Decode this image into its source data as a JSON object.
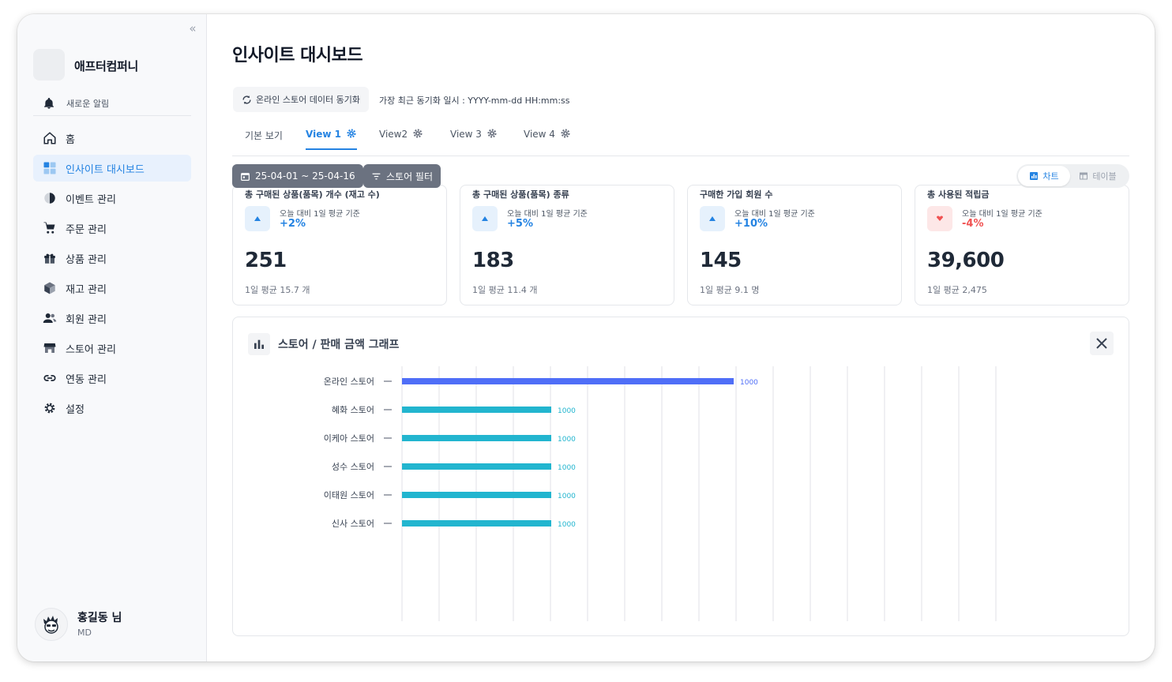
{
  "sidebar": {
    "brand_name": "애프터컴퍼니",
    "notification_label": "새로운 알림",
    "items": [
      {
        "label": "홈",
        "icon": "home-icon"
      },
      {
        "label": "인사이트 대시보드",
        "icon": "dashboard-icon",
        "active": true
      },
      {
        "label": "이벤트 관리",
        "icon": "pie-icon"
      },
      {
        "label": "주문 관리",
        "icon": "cart-icon"
      },
      {
        "label": "상품 관리",
        "icon": "gift-icon"
      },
      {
        "label": "재고 관리",
        "icon": "box-icon"
      },
      {
        "label": "회원 관리",
        "icon": "people-icon"
      },
      {
        "label": "스토어 관리",
        "icon": "store-icon"
      },
      {
        "label": "연동 관리",
        "icon": "link-icon"
      },
      {
        "label": "설정",
        "icon": "gear-icon"
      }
    ],
    "profile": {
      "name": "홍길동 님",
      "role": "MD"
    }
  },
  "header": {
    "title": "인사이트 대시보드",
    "sync_button": "온라인 스토어 데이터 동기화",
    "sync_time": "가장 최근 동기화 일시 : YYYY-mm-dd HH:mm:ss"
  },
  "tabs": [
    {
      "label": "기본 보기",
      "gear": false,
      "active": false
    },
    {
      "label": "View 1",
      "gear": true,
      "active": true
    },
    {
      "label": "View2",
      "gear": true,
      "active": false
    },
    {
      "label": "View 3",
      "gear": true,
      "active": false
    },
    {
      "label": "View 4",
      "gear": true,
      "active": false
    }
  ],
  "filters": {
    "date_range": "25-04-01 ~ 25-04-16",
    "store_filter": "스토어 필터"
  },
  "view_toggle": {
    "chart": "차트",
    "table": "테이블",
    "selected": "chart"
  },
  "kpis": [
    {
      "title": "총 구매된 상품(품목) 개수 (재고 수)",
      "sub": "오늘 대비 1일 평균 기준",
      "change": "+2%",
      "trend": "up",
      "value": "251",
      "avg": "1일 평균 15.7 개"
    },
    {
      "title": "총 구매된 상품(품목) 종류",
      "sub": "오늘 대비 1일 평균 기준",
      "change": "+5%",
      "trend": "up",
      "value": "183",
      "avg": "1일 평균 11.4 개"
    },
    {
      "title": "구매한 가입 회원 수",
      "sub": "오늘 대비 1일 평균 기준",
      "change": "+10%",
      "trend": "up",
      "value": "145",
      "avg": "1일 평균 9.1 명"
    },
    {
      "title": "총 사용된 적립금",
      "sub": "오늘 대비 1일 평균 기준",
      "change": "-4%",
      "trend": "down",
      "value": "39,600",
      "avg": "1일 평균 2,475"
    }
  ],
  "colors": {
    "accent": "#2483e2",
    "up": "#2483e2",
    "down": "#f05252",
    "bar_primary": "#4f6ef7",
    "bar_secondary": "#22b5cf"
  },
  "chart_panel": {
    "title": "스토어 / 판매 금액 그래프"
  },
  "chart_data": {
    "type": "bar",
    "orientation": "horizontal",
    "title": "스토어 / 판매 금액 그래프",
    "categories": [
      "온라인 스토어",
      "혜화 스토어",
      "이케아 스토어",
      "성수 스토어",
      "이태원 스토어",
      "신사 스토어"
    ],
    "values": [
      1000,
      1000,
      1000,
      1000,
      1000,
      1000
    ],
    "value_labels": [
      "1000",
      "1000",
      "1000",
      "1000",
      "1000",
      "1000"
    ],
    "bar_widths_relative": [
      1.0,
      0.45,
      0.45,
      0.45,
      0.45,
      0.45
    ],
    "bar_colors": [
      "#4f6ef7",
      "#22b5cf",
      "#22b5cf",
      "#22b5cf",
      "#22b5cf",
      "#22b5cf"
    ],
    "grid_lines": 17,
    "grid": true
  }
}
